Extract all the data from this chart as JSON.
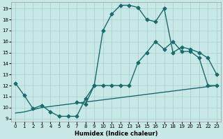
{
  "xlabel": "Humidex (Indice chaleur)",
  "bg_color": "#c8e8e8",
  "grid_color": "#a8cccc",
  "line_color": "#1a6b6b",
  "xlim_min": -0.5,
  "xlim_max": 23.5,
  "ylim_min": 8.7,
  "ylim_max": 19.6,
  "xticks": [
    0,
    1,
    2,
    3,
    4,
    5,
    6,
    7,
    8,
    9,
    10,
    11,
    12,
    13,
    14,
    15,
    16,
    17,
    18,
    19,
    20,
    21,
    22,
    23
  ],
  "yticks": [
    9,
    10,
    11,
    12,
    13,
    14,
    15,
    16,
    17,
    18,
    19
  ],
  "curve1_x": [
    0,
    1,
    2,
    3,
    4,
    5,
    6,
    7,
    8,
    9,
    10,
    11,
    12,
    13,
    14,
    15,
    16,
    17,
    18,
    19,
    20,
    21,
    22,
    23
  ],
  "curve1_y": [
    12.2,
    11.1,
    9.9,
    10.2,
    9.6,
    9.2,
    9.2,
    9.2,
    10.8,
    12.0,
    12.0,
    12.0,
    12.0,
    12.0,
    14.1,
    15.0,
    16.0,
    15.3,
    16.0,
    15.1,
    15.1,
    14.5,
    12.0,
    12.0
  ],
  "curve2_x": [
    7,
    8,
    9,
    10,
    11,
    12,
    13,
    14,
    15,
    16,
    17,
    18,
    19,
    20,
    21,
    22,
    23
  ],
  "curve2_y": [
    10.5,
    10.3,
    12.0,
    17.0,
    18.5,
    19.3,
    19.3,
    19.1,
    18.0,
    17.8,
    19.0,
    15.0,
    15.5,
    15.3,
    15.0,
    14.5,
    13.0
  ],
  "curve3_x": [
    0,
    1,
    2,
    3,
    4,
    5,
    6,
    7,
    8,
    9,
    10,
    11,
    12,
    13,
    14,
    15,
    16,
    17,
    18,
    19,
    20,
    21,
    22,
    23
  ],
  "curve3_y": [
    9.5,
    9.6,
    9.8,
    10.0,
    10.1,
    10.2,
    10.3,
    10.4,
    10.5,
    10.6,
    10.7,
    10.8,
    10.9,
    11.0,
    11.1,
    11.2,
    11.3,
    11.4,
    11.5,
    11.6,
    11.7,
    11.8,
    11.9,
    12.0
  ],
  "linewidth": 1.0,
  "markersize": 2.5,
  "marker": "D"
}
